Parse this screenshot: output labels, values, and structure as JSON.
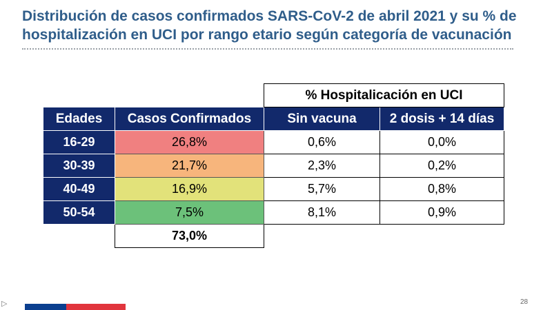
{
  "slide": {
    "title": "Distribución de casos confirmados SARS-CoV-2 de abril 2021 y su % de hospitalización en UCI por rango etario según categoría de vacunación",
    "page_number": "28"
  },
  "table": {
    "group_header": "% Hospitalicación en UCI",
    "headers": {
      "age": "Edades",
      "cases": "Casos Confirmados",
      "no_vaccine": "Sin vacuna",
      "two_doses": "2 dosis + 14 días"
    },
    "rows": [
      {
        "age": "16-29",
        "cases": "26,8%",
        "no_vaccine": "0,6%",
        "two_doses": "0,0%",
        "color": "#f08080"
      },
      {
        "age": "30-39",
        "cases": "21,7%",
        "no_vaccine": "2,3%",
        "two_doses": "0,2%",
        "color": "#f7b57c"
      },
      {
        "age": "40-49",
        "cases": "16,9%",
        "no_vaccine": "5,7%",
        "two_doses": "0,8%",
        "color": "#e2e27a"
      },
      {
        "age": "50-54",
        "cases": "7,5%",
        "no_vaccine": "8,1%",
        "two_doses": "0,9%",
        "color": "#6cc17a"
      }
    ],
    "total_cases": "73,0%"
  },
  "colors": {
    "title": "#2f5d8a",
    "header_bg": "#12296b",
    "footer_blue": "#0b3f8f",
    "footer_red": "#e1353d"
  }
}
